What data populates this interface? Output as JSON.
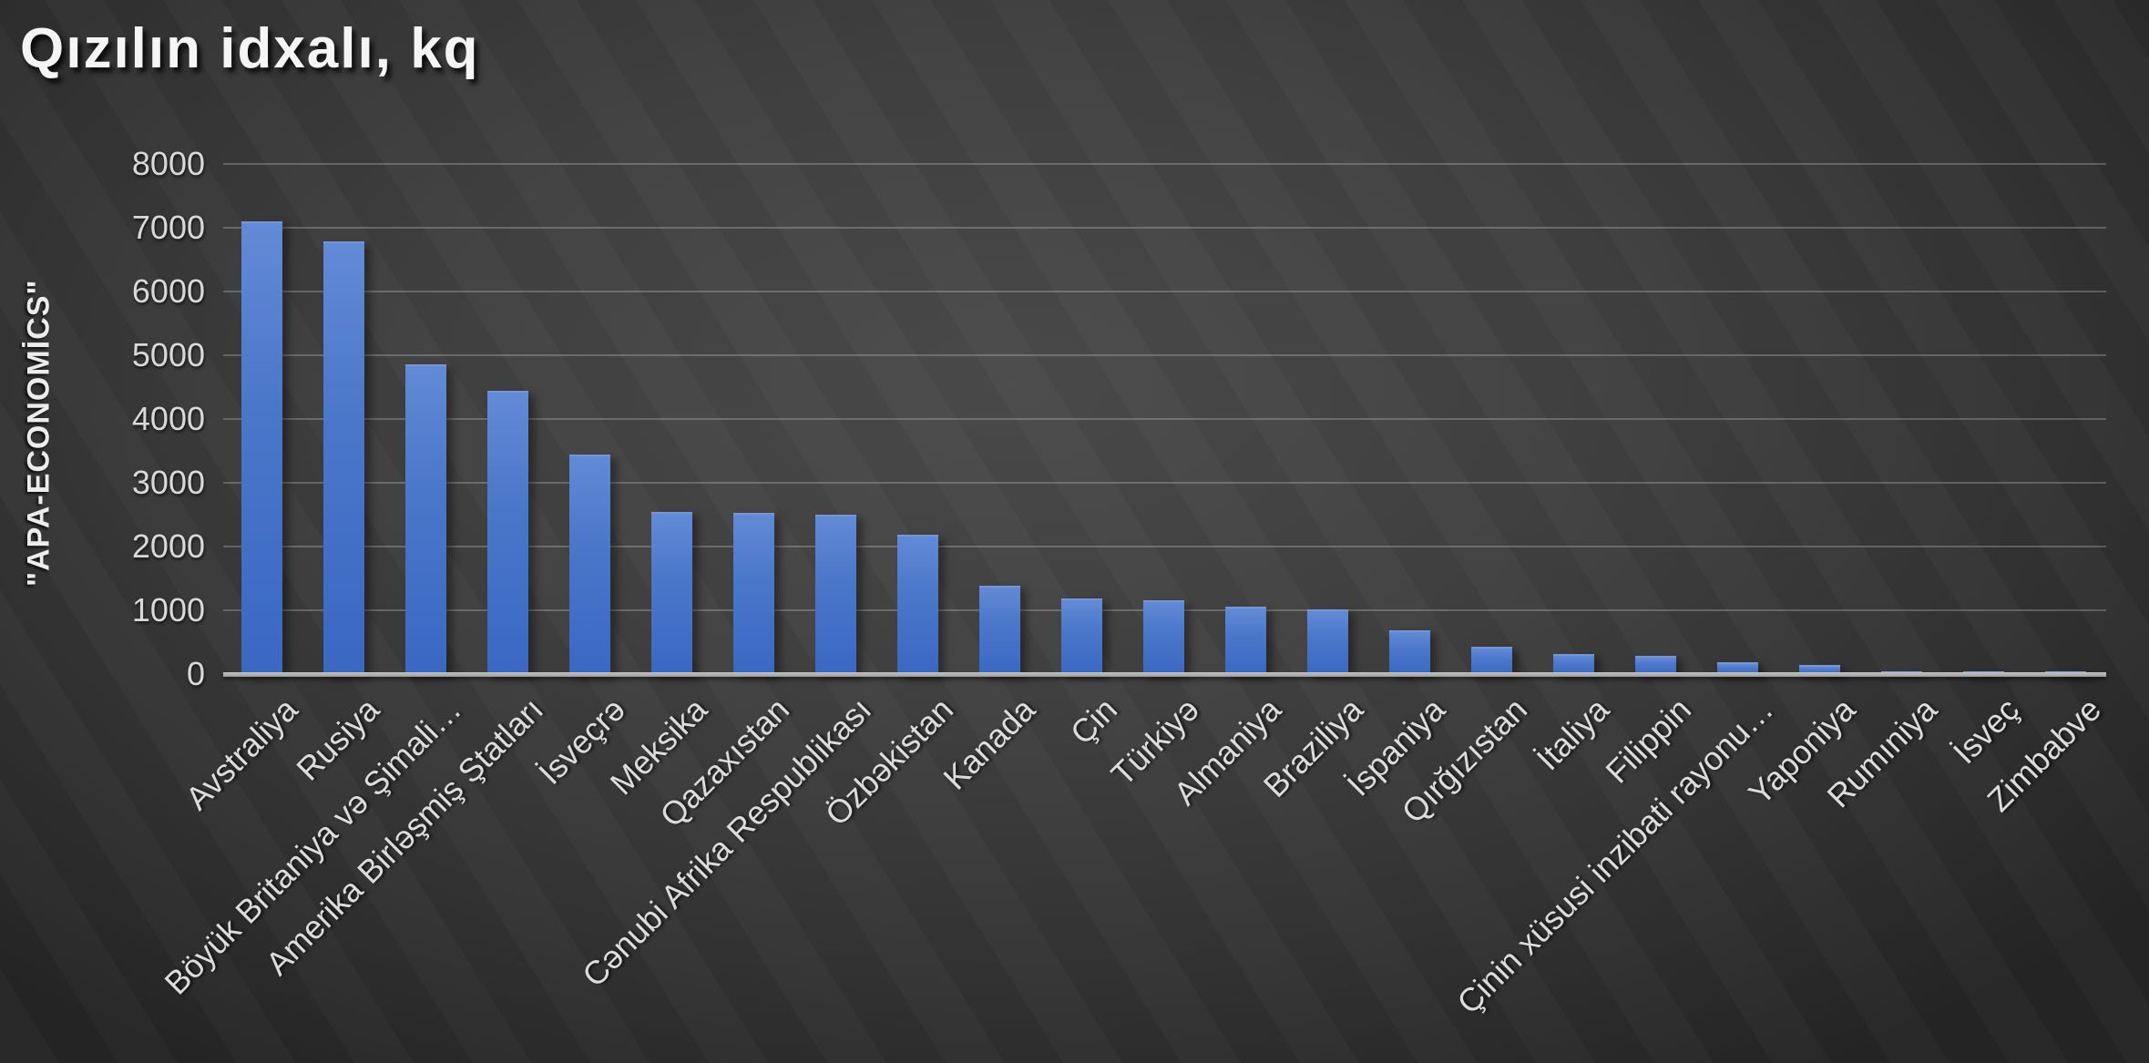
{
  "title": "Qızılın idxalı, kq",
  "source_label": "\"APA-ECONOMİCS\"",
  "chart_data": {
    "type": "bar",
    "title": "Qızılın idxalı, kq",
    "ylabel": "\"APA-ECONOMİCS\"",
    "xlabel": "",
    "ylim": [
      0,
      8000
    ],
    "ytick_step": 1000,
    "ytick_labels": [
      "0",
      "1000",
      "2000",
      "3000",
      "4000",
      "5000",
      "6000",
      "7000",
      "8000"
    ],
    "grid": true,
    "legend": "none",
    "categories": [
      "Avstraliya",
      "Rusiya",
      "Böyük Britaniya və Şimali…",
      "Amerika Birləşmiş Ştatları",
      "İsveçrə",
      "Meksika",
      "Qazaxıstan",
      "Cənubi Afrika Respublikası",
      "Özbəkistan",
      "Kanada",
      "Çin",
      "Türkiyə",
      "Almaniya",
      "Braziliya",
      "İspaniya",
      "Qırğızıstan",
      "İtaliya",
      "Filippin",
      "Çinin xüsusi inzibati rayonu…",
      "Yaponiya",
      "Rumıniya",
      "İsveç",
      "Zimbabve"
    ],
    "values": [
      7100,
      6780,
      4860,
      4450,
      3440,
      2550,
      2530,
      2500,
      2190,
      1390,
      1190,
      1160,
      1060,
      1020,
      680,
      430,
      310,
      280,
      190,
      140,
      50,
      40,
      20
    ],
    "colors": {
      "bar_top": "#628ad6",
      "bar_bottom": "#3a67c2",
      "background_center": "#4a4a4a",
      "background_edge": "#252525",
      "gridline": "rgba(255,255,255,0.22)",
      "axis_line": "#b0b0b0",
      "text": "#dcdcdc",
      "title_text": "#f5f5f5"
    }
  }
}
